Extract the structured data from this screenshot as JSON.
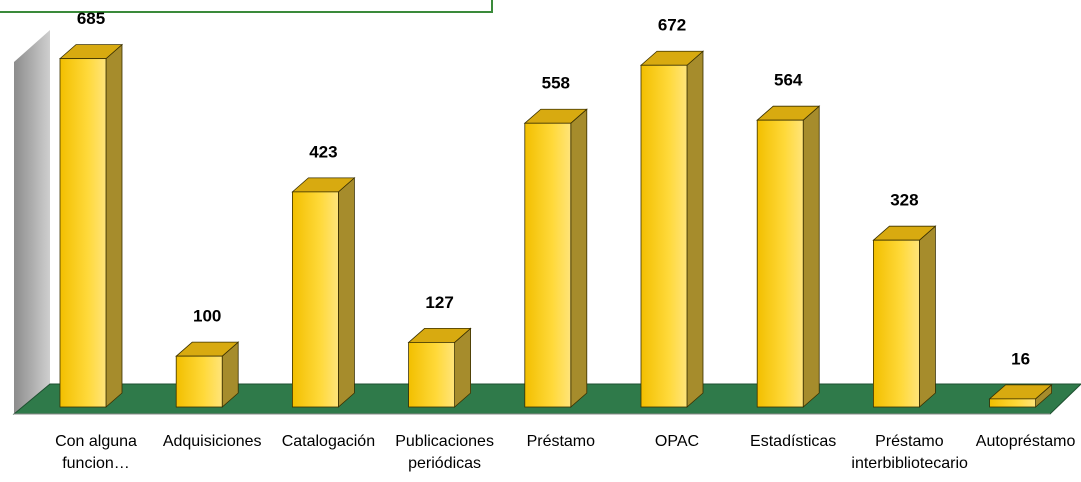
{
  "chart_data": {
    "type": "bar3d",
    "categories": [
      "Con alguna funcion…",
      "Adquisiciones",
      "Catalogación",
      "Publicaciones periódicas",
      "Préstamo",
      "OPAC",
      "Estadísticas",
      "Préstamo interbibliotecario",
      "Autopréstamo"
    ],
    "values": [
      685,
      100,
      423,
      127,
      558,
      672,
      564,
      328,
      16
    ],
    "color": "#ffd21f",
    "ylim": [
      0,
      700
    ]
  }
}
